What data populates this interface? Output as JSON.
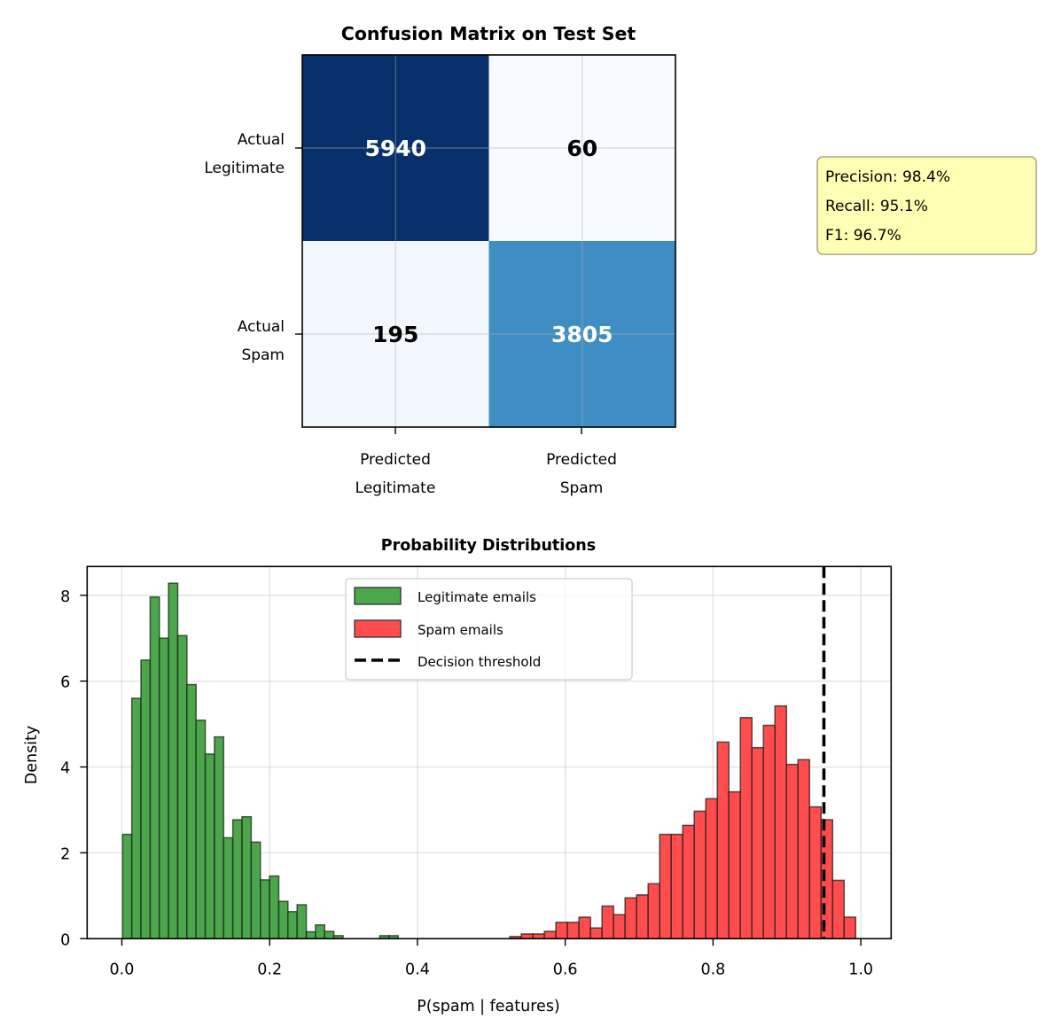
{
  "chart_data": [
    {
      "type": "heatmap",
      "title": "Confusion Matrix on Test Set",
      "row_labels": [
        [
          "Actual",
          "Legitimate"
        ],
        [
          "Actual",
          "Spam"
        ]
      ],
      "col_labels": [
        [
          "Predicted",
          "Legitimate"
        ],
        [
          "Predicted",
          "Spam"
        ]
      ],
      "values": [
        [
          5940,
          60
        ],
        [
          195,
          3805
        ]
      ],
      "colormap": "Blues",
      "cell_colors": [
        [
          "#08306b",
          "#f7fbff"
        ],
        [
          "#f2f7fd",
          "#3e8ec4"
        ]
      ],
      "text_colors": [
        [
          "#ffffff",
          "#000000"
        ],
        [
          "#000000",
          "#ffffff"
        ]
      ],
      "grid": true,
      "annotation": {
        "lines": [
          "Precision: 98.4%",
          "Recall: 95.1%",
          "F1: 96.7%"
        ],
        "placement": "right",
        "background": "#ffffb3",
        "border": "#a8a88a"
      }
    },
    {
      "type": "bar",
      "subtype": "histogram",
      "title": "Probability Distributions",
      "xlabel": "P(spam | features)",
      "ylabel": "Density",
      "xlim": [
        -0.047,
        1.041
      ],
      "ylim": [
        0,
        8.67
      ],
      "xticks": [
        0.0,
        0.2,
        0.4,
        0.6,
        0.8,
        1.0
      ],
      "xtick_labels": [
        "0.0",
        "0.2",
        "0.4",
        "0.6",
        "0.8",
        "1.0"
      ],
      "yticks": [
        0,
        2,
        4,
        6,
        8
      ],
      "ytick_labels": [
        "0",
        "2",
        "4",
        "6",
        "8"
      ],
      "grid": true,
      "legend_placement": "upper-center",
      "series": [
        {
          "name": "Legitimate emails",
          "color": "#4ca64c",
          "edgecolor": "#1a2a1a",
          "bin_start": 0.001,
          "bin_width": 0.01243,
          "values": [
            2.43,
            5.6,
            6.49,
            7.96,
            7.0,
            8.28,
            7.06,
            5.92,
            5.09,
            4.3,
            4.7,
            2.35,
            2.77,
            2.84,
            2.25,
            1.37,
            1.46,
            0.87,
            0.63,
            0.79,
            0.16,
            0.32,
            0.17,
            0.07,
            0,
            0,
            0,
            0,
            0.07,
            0.07
          ]
        },
        {
          "name": "Spam emails",
          "color": "#ff4d4d",
          "edgecolor": "#2a1a1a",
          "bin_start": 0.525,
          "bin_width": 0.0156,
          "values": [
            0.05,
            0.11,
            0.11,
            0.17,
            0.38,
            0.38,
            0.5,
            0.25,
            0.76,
            0.56,
            0.95,
            1.02,
            1.28,
            2.43,
            2.43,
            2.64,
            2.97,
            3.26,
            4.58,
            3.42,
            5.15,
            4.45,
            4.97,
            5.42,
            4.06,
            4.17,
            3.07,
            2.77,
            1.36,
            0.5
          ]
        }
      ],
      "threshold": {
        "name": "Decision threshold",
        "x": 0.95,
        "color": "#000000",
        "style": "dashed"
      }
    }
  ]
}
